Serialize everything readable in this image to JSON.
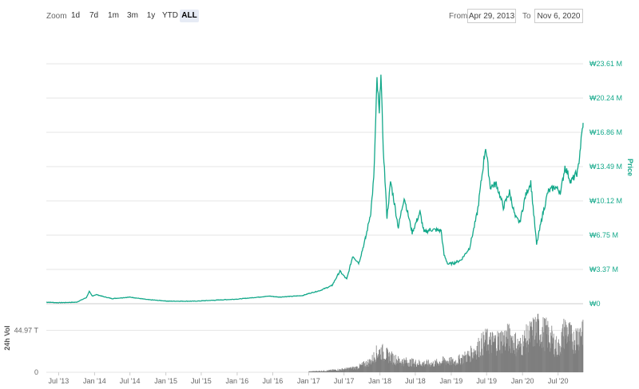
{
  "toolbar": {
    "zoom_label": "Zoom",
    "zoom_buttons": [
      "1d",
      "7d",
      "1m",
      "3m",
      "1y",
      "YTD",
      "ALL"
    ],
    "active_zoom": "ALL",
    "from_label": "From",
    "from_value": "Apr 29, 2013",
    "to_label": "To",
    "to_value": "Nov 6, 2020"
  },
  "colors": {
    "price_line": "#13a88a",
    "volume_bar": "#7f7f7f",
    "grid": "#e6e6e6",
    "axis_text": "#13a88a"
  },
  "chart_data": {
    "type": "line",
    "price_axis": {
      "title": "Price",
      "ticks": [
        "₩0",
        "₩3.37 M",
        "₩6.75 M",
        "₩10.12 M",
        "₩13.49 M",
        "₩16.86 M",
        "₩20.24 M",
        "₩23.61 M"
      ],
      "tick_values": [
        0,
        3.37,
        6.75,
        10.12,
        13.49,
        16.86,
        20.24,
        23.61
      ],
      "ylim": [
        0,
        23.61
      ],
      "unit": "M KRW"
    },
    "volume_axis": {
      "title": "24h Vol",
      "ticks": [
        "0",
        "44.97 T"
      ],
      "tick_values": [
        0,
        44.97
      ],
      "ylim": [
        0,
        70
      ],
      "unit": "T KRW"
    },
    "x_axis": {
      "start": "2013-04-29",
      "end": "2020-11-06",
      "ticks": [
        "Jul '13",
        "Jan '14",
        "Jul '14",
        "Jan '15",
        "Jul '15",
        "Jan '16",
        "Jul '16",
        "Jan '17",
        "Jul '17",
        "Jan '18",
        "Jul '18",
        "Jan '19",
        "Jul '19",
        "Jan '20",
        "Jul '20"
      ],
      "tick_dates": [
        "2013-07-01",
        "2014-01-01",
        "2014-07-01",
        "2015-01-01",
        "2015-07-01",
        "2016-01-01",
        "2016-07-01",
        "2017-01-01",
        "2017-07-01",
        "2018-01-01",
        "2018-07-01",
        "2019-01-01",
        "2019-07-01",
        "2020-01-01",
        "2020-07-01"
      ]
    },
    "series": [
      {
        "values": [
          [
            "2013-04-29",
            0.15
          ],
          [
            "2013-07-01",
            0.1
          ],
          [
            "2013-10-01",
            0.15
          ],
          [
            "2013-11-20",
            0.6
          ],
          [
            "2013-12-05",
            1.2
          ],
          [
            "2013-12-20",
            0.75
          ],
          [
            "2014-01-10",
            0.9
          ],
          [
            "2014-02-15",
            0.7
          ],
          [
            "2014-04-01",
            0.5
          ],
          [
            "2014-07-01",
            0.65
          ],
          [
            "2014-10-01",
            0.4
          ],
          [
            "2015-01-15",
            0.25
          ],
          [
            "2015-06-01",
            0.25
          ],
          [
            "2015-11-05",
            0.4
          ],
          [
            "2016-01-01",
            0.45
          ],
          [
            "2016-06-15",
            0.75
          ],
          [
            "2016-08-01",
            0.65
          ],
          [
            "2016-12-01",
            0.8
          ],
          [
            "2017-01-01",
            1.0
          ],
          [
            "2017-03-01",
            1.3
          ],
          [
            "2017-05-01",
            1.8
          ],
          [
            "2017-06-10",
            3.2
          ],
          [
            "2017-07-15",
            2.4
          ],
          [
            "2017-08-15",
            4.7
          ],
          [
            "2017-09-15",
            4.0
          ],
          [
            "2017-10-20",
            6.5
          ],
          [
            "2017-11-15",
            9.0
          ],
          [
            "2017-12-01",
            12.5
          ],
          [
            "2017-12-17",
            22.0
          ],
          [
            "2017-12-29",
            18.5
          ],
          [
            "2018-01-06",
            23.1
          ],
          [
            "2018-01-15",
            16.5
          ],
          [
            "2018-02-06",
            8.5
          ],
          [
            "2018-02-25",
            12.0
          ],
          [
            "2018-03-15",
            10.0
          ],
          [
            "2018-04-05",
            7.5
          ],
          [
            "2018-05-05",
            10.5
          ],
          [
            "2018-06-15",
            7.0
          ],
          [
            "2018-07-25",
            9.0
          ],
          [
            "2018-08-15",
            7.0
          ],
          [
            "2018-09-15",
            7.3
          ],
          [
            "2018-11-10",
            7.2
          ],
          [
            "2018-11-25",
            4.8
          ],
          [
            "2018-12-15",
            3.9
          ],
          [
            "2019-01-15",
            4.0
          ],
          [
            "2019-02-20",
            4.3
          ],
          [
            "2019-04-05",
            5.5
          ],
          [
            "2019-05-15",
            9.0
          ],
          [
            "2019-06-26",
            15.5
          ],
          [
            "2019-07-20",
            11.5
          ],
          [
            "2019-08-20",
            11.8
          ],
          [
            "2019-09-25",
            9.5
          ],
          [
            "2019-10-26",
            11.0
          ],
          [
            "2019-11-25",
            8.5
          ],
          [
            "2019-12-18",
            8.0
          ],
          [
            "2020-01-15",
            10.5
          ],
          [
            "2020-02-12",
            12.0
          ],
          [
            "2020-03-13",
            5.8
          ],
          [
            "2020-04-10",
            8.5
          ],
          [
            "2020-05-10",
            11.0
          ],
          [
            "2020-06-15",
            11.5
          ],
          [
            "2020-07-15",
            11.0
          ],
          [
            "2020-08-05",
            13.5
          ],
          [
            "2020-09-05",
            12.0
          ],
          [
            "2020-10-10",
            13.0
          ],
          [
            "2020-10-21",
            15.0
          ],
          [
            "2020-11-06",
            17.8
          ]
        ]
      },
      {
        "values": [
          [
            "2017-01-01",
            1.0
          ],
          [
            "2017-04-01",
            2.0
          ],
          [
            "2017-07-01",
            4.0
          ],
          [
            "2017-09-01",
            6.0
          ],
          [
            "2017-11-15",
            14.0
          ],
          [
            "2017-12-10",
            24.0
          ],
          [
            "2018-01-05",
            27.0
          ],
          [
            "2018-02-05",
            22.0
          ],
          [
            "2018-04-01",
            15.0
          ],
          [
            "2018-07-01",
            12.0
          ],
          [
            "2018-10-01",
            11.0
          ],
          [
            "2018-12-01",
            15.0
          ],
          [
            "2019-01-15",
            13.0
          ],
          [
            "2019-04-01",
            22.0
          ],
          [
            "2019-06-25",
            40.0
          ],
          [
            "2019-08-01",
            38.0
          ],
          [
            "2019-10-26",
            45.0
          ],
          [
            "2019-12-15",
            32.0
          ],
          [
            "2020-01-15",
            42.0
          ],
          [
            "2020-03-13",
            55.0
          ],
          [
            "2020-05-10",
            48.0
          ],
          [
            "2020-07-01",
            30.0
          ],
          [
            "2020-08-05",
            55.0
          ],
          [
            "2020-09-15",
            40.0
          ],
          [
            "2020-10-21",
            52.0
          ],
          [
            "2020-11-06",
            60.0
          ]
        ]
      }
    ]
  }
}
